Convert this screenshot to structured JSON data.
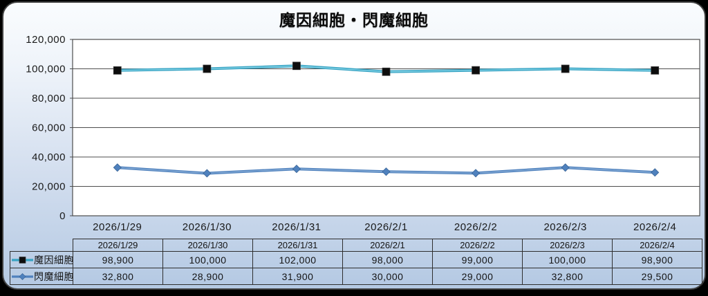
{
  "chart_data": {
    "type": "line",
    "title": "魔因細胞・閃魔細胞",
    "categories": [
      "2026/1/29",
      "2026/1/30",
      "2026/1/31",
      "2026/2/1",
      "2026/2/2",
      "2026/2/3",
      "2026/2/4"
    ],
    "series": [
      {
        "name": "魔因細胞",
        "values": [
          98900,
          100000,
          102000,
          98000,
          99000,
          100000,
          98900
        ],
        "color": "#37a3c3",
        "highlight": "#8ed8ea",
        "marker": "square",
        "marker_color": "#0d0d0d"
      },
      {
        "name": "閃魔細胞",
        "values": [
          32800,
          28900,
          31900,
          30000,
          29000,
          32800,
          29500
        ],
        "color": "#4f81bd",
        "highlight": "#8fb2d9",
        "marker": "diamond",
        "marker_color": "#4f81bd"
      }
    ],
    "xlabel": "",
    "ylabel": "",
    "ylim": [
      0,
      120000
    ],
    "ytick_step": 20000,
    "ytick_labels": [
      "0",
      "20,000",
      "40,000",
      "60,000",
      "80,000",
      "100,000",
      "120,000"
    ],
    "grid": true,
    "legend_position": "table-left",
    "plot_bg": "#ffffff",
    "gridline_color": "#4d4d4d",
    "axis_text_color": "#1a1a1a"
  },
  "table": {
    "header": [
      "2026/1/29",
      "2026/1/30",
      "2026/1/31",
      "2026/2/1",
      "2026/2/2",
      "2026/2/3",
      "2026/2/4"
    ],
    "rows": [
      {
        "label": "魔因細胞",
        "values": [
          "98,900",
          "100,000",
          "102,000",
          "98,000",
          "99,000",
          "100,000",
          "98,900"
        ]
      },
      {
        "label": "閃魔細胞",
        "values": [
          "32,800",
          "28,900",
          "31,900",
          "30,000",
          "29,000",
          "32,800",
          "29,500"
        ]
      }
    ]
  }
}
